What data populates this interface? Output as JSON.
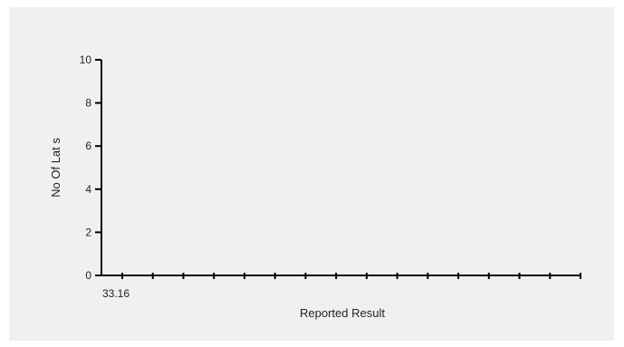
{
  "chart_data": {
    "type": "bar",
    "title": "",
    "xlabel": "Reported Result",
    "ylabel": "No Of Lat s",
    "ylim": [
      0,
      10
    ],
    "yticks": [
      0,
      2,
      4,
      6,
      8,
      10
    ],
    "x_tick_labels": [
      "33.16"
    ],
    "x_tick_count": 16,
    "categories": [],
    "values": [],
    "grid": false,
    "legend": "none",
    "axis_color": "#000000",
    "background_color": "#f0f0f0"
  }
}
